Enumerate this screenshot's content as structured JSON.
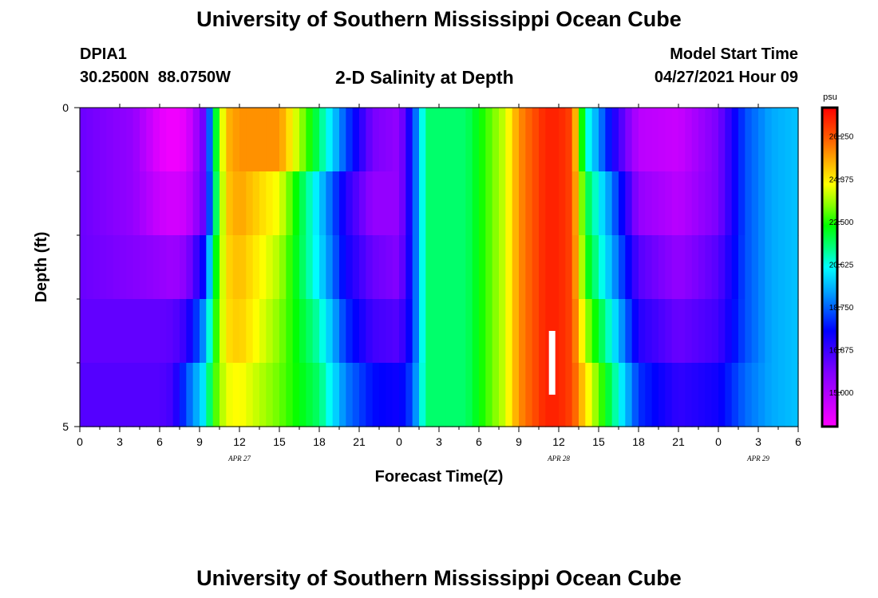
{
  "header": {
    "title": "University of Southern Mississippi Ocean Cube",
    "station_id": "DPIA1",
    "coordinates": "30.2500N  88.0750W",
    "subtitle": "2-D Salinity at Depth",
    "model_start_label": "Model Start Time",
    "model_start_value": "04/27/2021 Hour 09"
  },
  "footer": {
    "title": "University of Southern Mississippi Ocean Cube"
  },
  "chart_data": {
    "type": "heatmap",
    "title": "2-D Salinity at Depth",
    "xlabel": "Forecast Time(Z)",
    "ylabel": "Depth (ft)",
    "x_tick_labels": [
      "0",
      "3",
      "6",
      "9",
      "12",
      "15",
      "18",
      "21",
      "0",
      "3",
      "6",
      "9",
      "12",
      "15",
      "18",
      "21",
      "0",
      "3",
      "6"
    ],
    "x_tick_hours": [
      0,
      3,
      6,
      9,
      12,
      15,
      18,
      21,
      24,
      27,
      30,
      33,
      36,
      39,
      42,
      45,
      48,
      51,
      54
    ],
    "date_labels": [
      {
        "label": "APR  27",
        "hour": 12
      },
      {
        "label": "APR  28",
        "hour": 36
      },
      {
        "label": "APR  29",
        "hour": 51
      }
    ],
    "xlim": [
      0,
      54
    ],
    "y_tick_labels": [
      "0",
      "5"
    ],
    "ylim": [
      0,
      5
    ],
    "y_layers": [
      0,
      1,
      2,
      3,
      4,
      5
    ],
    "colorbar": {
      "unit": "psu",
      "min": 13.5,
      "max": 27.5,
      "tick_labels": [
        "26.250",
        "24.375",
        "22.500",
        "20.625",
        "18.750",
        "16.875",
        "15.000"
      ],
      "tick_values": [
        26.25,
        24.375,
        22.5,
        20.625,
        18.75,
        16.875,
        15.0
      ]
    },
    "marker": {
      "hour": 35.5,
      "depth_start": 3.5,
      "depth_end": 4.5,
      "color": "#ffffff"
    },
    "key_hours": [
      0,
      4,
      6,
      7,
      8,
      9.5,
      10,
      11,
      12,
      15,
      18,
      20,
      22,
      24,
      25,
      26,
      29,
      32,
      33,
      35,
      36,
      37,
      38,
      40,
      42,
      45,
      48,
      50,
      52,
      54
    ],
    "key_values": [
      [
        16.2,
        15.5,
        14.0,
        13.7,
        14.0,
        16.5,
        21.0,
        25.0,
        25.5,
        25.5,
        21.5,
        18.5,
        16.0,
        15.5,
        18.0,
        21.5,
        21.5,
        23.8,
        25.5,
        27.0,
        27.0,
        26.5,
        21.0,
        17.5,
        14.8,
        14.5,
        16.0,
        18.5,
        19.5,
        19.8
      ],
      [
        16.2,
        15.5,
        14.5,
        14.3,
        14.5,
        16.5,
        20.5,
        24.8,
        25.3,
        24.0,
        20.0,
        17.2,
        15.5,
        15.5,
        18.0,
        21.5,
        21.5,
        23.8,
        25.5,
        27.0,
        27.0,
        26.5,
        22.0,
        19.0,
        15.5,
        14.8,
        16.0,
        18.5,
        19.5,
        19.8
      ],
      [
        16.2,
        15.8,
        15.5,
        15.3,
        15.7,
        18.0,
        21.5,
        24.6,
        25.0,
        23.5,
        20.2,
        17.5,
        16.2,
        15.8,
        18.0,
        21.5,
        21.5,
        23.8,
        25.5,
        27.0,
        27.0,
        26.5,
        22.5,
        19.5,
        16.5,
        15.5,
        16.5,
        18.5,
        19.5,
        19.8
      ],
      [
        16.3,
        16.3,
        16.3,
        16.4,
        17.0,
        19.5,
        22.0,
        24.5,
        24.8,
        23.2,
        21.0,
        18.2,
        16.8,
        16.5,
        18.0,
        21.5,
        21.5,
        23.8,
        25.5,
        27.0,
        27.0,
        26.5,
        23.5,
        20.5,
        17.2,
        16.2,
        16.8,
        18.5,
        19.5,
        19.8
      ],
      [
        16.5,
        16.5,
        16.5,
        16.8,
        18.5,
        20.5,
        22.5,
        24.0,
        24.2,
        23.0,
        21.5,
        19.0,
        17.8,
        17.5,
        18.5,
        21.5,
        21.5,
        23.8,
        25.5,
        27.0,
        27.0,
        26.5,
        24.5,
        21.5,
        18.2,
        17.0,
        17.5,
        18.8,
        19.5,
        19.8
      ],
      [
        16.5,
        16.5,
        17.2,
        18.5,
        20.0,
        21.5,
        23.5,
        23.8,
        23.8,
        23.5,
        22.8,
        20.5,
        18.8,
        18.6,
        19.5,
        21.5,
        21.5,
        23.8,
        25.5,
        27.0,
        27.0,
        26.5,
        25.0,
        22.0,
        19.0,
        17.8,
        18.0,
        19.0,
        19.5,
        19.8
      ]
    ]
  }
}
